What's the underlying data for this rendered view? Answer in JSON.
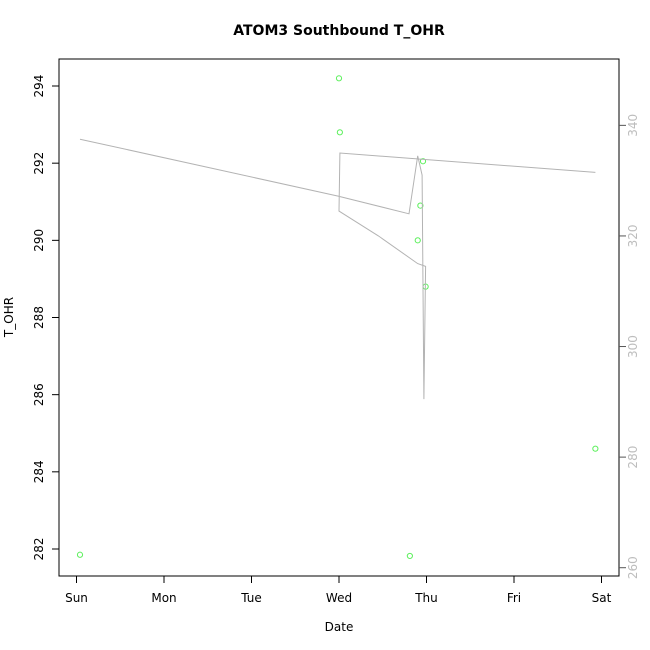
{
  "chart_data": {
    "type": "scatter",
    "title": "ATOM3 Southbound T_OHR",
    "xlabel": "Date",
    "ylabel": "T_OHR",
    "x_ticks": [
      "Sun",
      "Mon",
      "Tue",
      "Wed",
      "Thu",
      "Fri",
      "Sat"
    ],
    "xlim": [
      -0.2,
      6.2
    ],
    "ylim": [
      281.3,
      294.7
    ],
    "y_ticks": [
      282,
      284,
      286,
      288,
      290,
      292,
      294
    ],
    "y2lim": [
      258.5,
      352.0
    ],
    "y2_ticks": [
      260,
      280,
      300,
      320,
      340
    ],
    "grid": false,
    "series": [
      {
        "kind": "points",
        "axis": "left",
        "color": "#5cf05c",
        "points": [
          {
            "x": 0.04,
            "y": 281.85
          },
          {
            "x": 3.0,
            "y": 294.2
          },
          {
            "x": 3.01,
            "y": 292.8
          },
          {
            "x": 3.81,
            "y": 281.82
          },
          {
            "x": 3.9,
            "y": 290.0
          },
          {
            "x": 3.93,
            "y": 290.9
          },
          {
            "x": 3.96,
            "y": 292.05
          },
          {
            "x": 3.99,
            "y": 288.8
          },
          {
            "x": 5.93,
            "y": 284.6
          }
        ]
      },
      {
        "kind": "line",
        "axis": "right",
        "color": "#b3b3b3",
        "points": [
          {
            "x": 0.04,
            "y": 337.5
          },
          {
            "x": 2.99,
            "y": 327.2
          },
          {
            "x": 3.8,
            "y": 324.0
          },
          {
            "x": 3.9,
            "y": 334.5
          },
          {
            "x": 3.95,
            "y": 331.0
          },
          {
            "x": 3.97,
            "y": 290.5
          },
          {
            "x": 3.99,
            "y": 314.5
          },
          {
            "x": 3.9,
            "y": 315.0
          },
          {
            "x": 3.45,
            "y": 320.0
          },
          {
            "x": 3.0,
            "y": 324.5
          },
          {
            "x": 3.01,
            "y": 335.0
          },
          {
            "x": 5.93,
            "y": 331.5
          }
        ]
      }
    ]
  }
}
